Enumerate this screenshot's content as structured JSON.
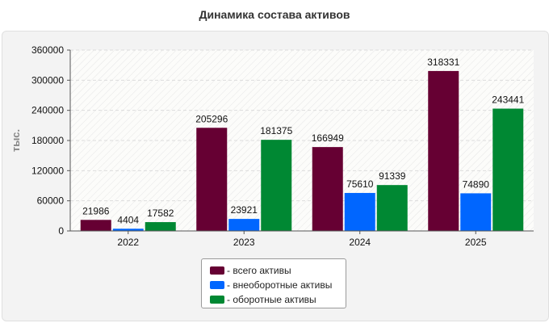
{
  "chart_data": {
    "type": "bar",
    "title": "Динамика состава активов",
    "ylabel": "тыс.",
    "xlabel": "",
    "categories": [
      "2022",
      "2023",
      "2024",
      "2025"
    ],
    "ylim": [
      0,
      360000
    ],
    "yticks": [
      "0",
      "60000",
      "120000",
      "180000",
      "240000",
      "300000",
      "360000"
    ],
    "grid": true,
    "legend_position": "bottom-center",
    "series": [
      {
        "name": "- всего активы",
        "color": "#660033",
        "values": [
          21986,
          205296,
          166949,
          318331
        ]
      },
      {
        "name": "- внеоборотные активы",
        "color": "#0066ff",
        "values": [
          4404,
          23921,
          75610,
          74890
        ]
      },
      {
        "name": "- оборотные активы",
        "color": "#008833",
        "values": [
          17582,
          181375,
          91339,
          243441
        ]
      }
    ]
  }
}
